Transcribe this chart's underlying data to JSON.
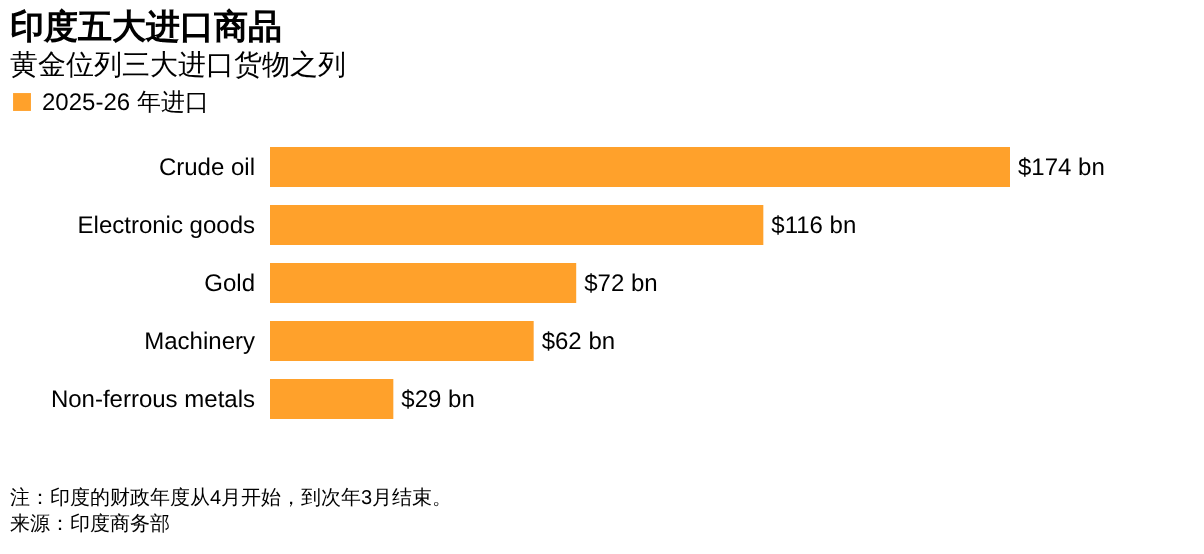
{
  "chart_data": {
    "type": "bar",
    "orientation": "horizontal",
    "title": "印度五大进口商品",
    "subtitle": "黄金位列三大进口货物之列",
    "categories": [
      "Crude oil",
      "Electronic goods",
      "Gold",
      "Machinery",
      "Non-ferrous metals"
    ],
    "series": [
      {
        "name": "2025-26 年进口",
        "color": "#ffa12b",
        "values": [
          174,
          116,
          72,
          62,
          29
        ],
        "value_labels": [
          "$174 bn",
          "$116 bn",
          "$72 bn",
          "$62 bn",
          "$29 bn"
        ]
      }
    ],
    "legend": "top left",
    "annotations": [
      "注：印度的财政年度从4月开始，到次年3月结束。",
      "来源：印度商务部"
    ]
  }
}
